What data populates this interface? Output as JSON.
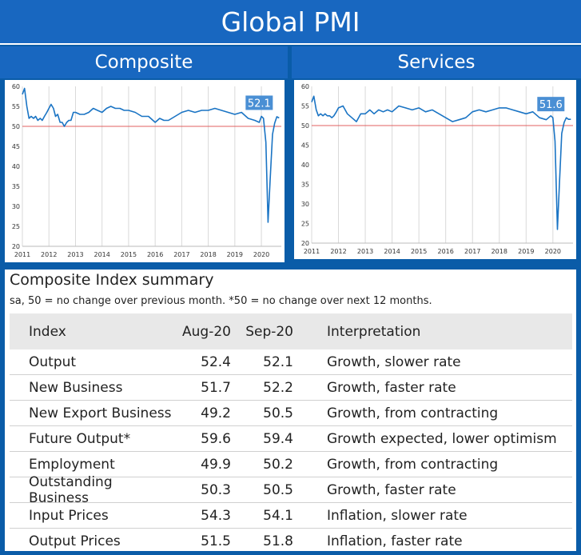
{
  "header": {
    "title": "Global PMI"
  },
  "panels": {
    "left_title": "Composite",
    "right_title": "Services"
  },
  "colors": {
    "line": "#1a74c4",
    "threshold": "#e06060",
    "grid": "#d9d9d9",
    "callout": "#4a8fd4"
  },
  "chart_data": [
    {
      "type": "line",
      "title": "Composite",
      "x_range": [
        2011,
        2020.75
      ],
      "ylim": [
        20,
        60
      ],
      "yticks": [
        20,
        25,
        30,
        35,
        40,
        45,
        50,
        55,
        60
      ],
      "xticks": [
        "2011",
        "2012",
        "2013",
        "2014",
        "2015",
        "2016",
        "2017",
        "2018",
        "2019",
        "2020"
      ],
      "threshold": 50,
      "grid": "vertical",
      "callout": "52.1",
      "series": [
        {
          "x": [
            2011.0,
            2011.08,
            2011.17,
            2011.25,
            2011.33,
            2011.42,
            2011.5,
            2011.58,
            2011.67,
            2011.75,
            2011.83,
            2011.92,
            2012.0,
            2012.08,
            2012.17,
            2012.25,
            2012.33,
            2012.42,
            2012.5,
            2012.58,
            2012.67,
            2012.75,
            2012.83,
            2012.92,
            2013.0,
            2013.17,
            2013.33,
            2013.5,
            2013.67,
            2013.83,
            2014.0,
            2014.17,
            2014.33,
            2014.5,
            2014.67,
            2014.83,
            2015.0,
            2015.25,
            2015.5,
            2015.75,
            2016.0,
            2016.17,
            2016.33,
            2016.5,
            2016.75,
            2017.0,
            2017.25,
            2017.5,
            2017.75,
            2018.0,
            2018.25,
            2018.5,
            2018.75,
            2019.0,
            2019.25,
            2019.5,
            2019.75,
            2019.92,
            2020.0,
            2020.08,
            2020.17,
            2020.25,
            2020.33,
            2020.42,
            2020.5,
            2020.58,
            2020.67
          ],
          "y": [
            58,
            59.5,
            55,
            52,
            52.5,
            52,
            52.5,
            51.5,
            52,
            51.5,
            52.5,
            53.5,
            54.5,
            55.5,
            54.5,
            52.5,
            53,
            51,
            51,
            50,
            51,
            51.5,
            51.5,
            53.5,
            53.5,
            53,
            53,
            53.5,
            54.5,
            54,
            53.5,
            54.5,
            55,
            54.5,
            54.5,
            54,
            54,
            53.5,
            52.5,
            52.5,
            51,
            52,
            51.5,
            51.5,
            52.5,
            53.5,
            54,
            53.5,
            54,
            54,
            54.5,
            54,
            53.5,
            53,
            53.5,
            52,
            51.5,
            51,
            52.5,
            52,
            46,
            26,
            36.5,
            48,
            50.8,
            52.4,
            52.1
          ]
        }
      ]
    },
    {
      "type": "line",
      "title": "Services",
      "x_range": [
        2011,
        2020.75
      ],
      "ylim": [
        20,
        60
      ],
      "yticks": [
        20,
        25,
        30,
        35,
        40,
        45,
        50,
        55,
        60
      ],
      "xticks": [
        "2011",
        "2012",
        "2013",
        "2014",
        "2015",
        "2016",
        "2017",
        "2018",
        "2019",
        "2020"
      ],
      "threshold": 50,
      "grid": "vertical",
      "callout": "51.6",
      "series": [
        {
          "x": [
            2011.0,
            2011.08,
            2011.17,
            2011.25,
            2011.33,
            2011.42,
            2011.5,
            2011.58,
            2011.67,
            2011.75,
            2011.83,
            2011.92,
            2012.0,
            2012.17,
            2012.33,
            2012.5,
            2012.67,
            2012.83,
            2013.0,
            2013.17,
            2013.33,
            2013.5,
            2013.67,
            2013.83,
            2014.0,
            2014.25,
            2014.5,
            2014.75,
            2015.0,
            2015.25,
            2015.5,
            2015.75,
            2016.0,
            2016.25,
            2016.5,
            2016.75,
            2017.0,
            2017.25,
            2017.5,
            2017.75,
            2018.0,
            2018.25,
            2018.5,
            2018.75,
            2019.0,
            2019.25,
            2019.5,
            2019.75,
            2019.92,
            2020.0,
            2020.08,
            2020.17,
            2020.25,
            2020.33,
            2020.42,
            2020.5,
            2020.58,
            2020.67
          ],
          "y": [
            56,
            57.5,
            54,
            52.5,
            53,
            52.5,
            53,
            52.5,
            52.5,
            52,
            52.5,
            53.5,
            54.5,
            55,
            53,
            52,
            51,
            53,
            53,
            54,
            53,
            54,
            53.5,
            54,
            53.5,
            55,
            54.5,
            54,
            54.5,
            53.5,
            54,
            53,
            52,
            51,
            51.5,
            52,
            53.5,
            54,
            53.5,
            54,
            54.5,
            54.5,
            54,
            53.5,
            53,
            53.5,
            52,
            51.5,
            52.5,
            52,
            46,
            23.5,
            36,
            48,
            50.8,
            52,
            51.6,
            51.6
          ]
        }
      ]
    }
  ],
  "summary": {
    "title": "Composite Index summary",
    "note": "sa, 50 = no change over previous month. *50 = no change over next 12 months.",
    "columns": [
      "Index",
      "Aug-20",
      "Sep-20",
      "Interpretation"
    ],
    "rows": [
      [
        "Output",
        "52.4",
        "52.1",
        "Growth, slower rate"
      ],
      [
        "New Business",
        "51.7",
        "52.2",
        "Growth, faster rate"
      ],
      [
        "New Export Business",
        "49.2",
        "50.5",
        "Growth, from contracting"
      ],
      [
        "Future Output*",
        "59.6",
        "59.4",
        "Growth expected, lower optimism"
      ],
      [
        "Employment",
        "49.9",
        "50.2",
        "Growth, from contracting"
      ],
      [
        "Outstanding Business",
        "50.3",
        "50.5",
        "Growth, faster rate"
      ],
      [
        "Input Prices",
        "54.3",
        "54.1",
        "Inflation, slower rate"
      ],
      [
        "Output Prices",
        "51.5",
        "51.8",
        "Inflation, faster rate"
      ]
    ]
  }
}
